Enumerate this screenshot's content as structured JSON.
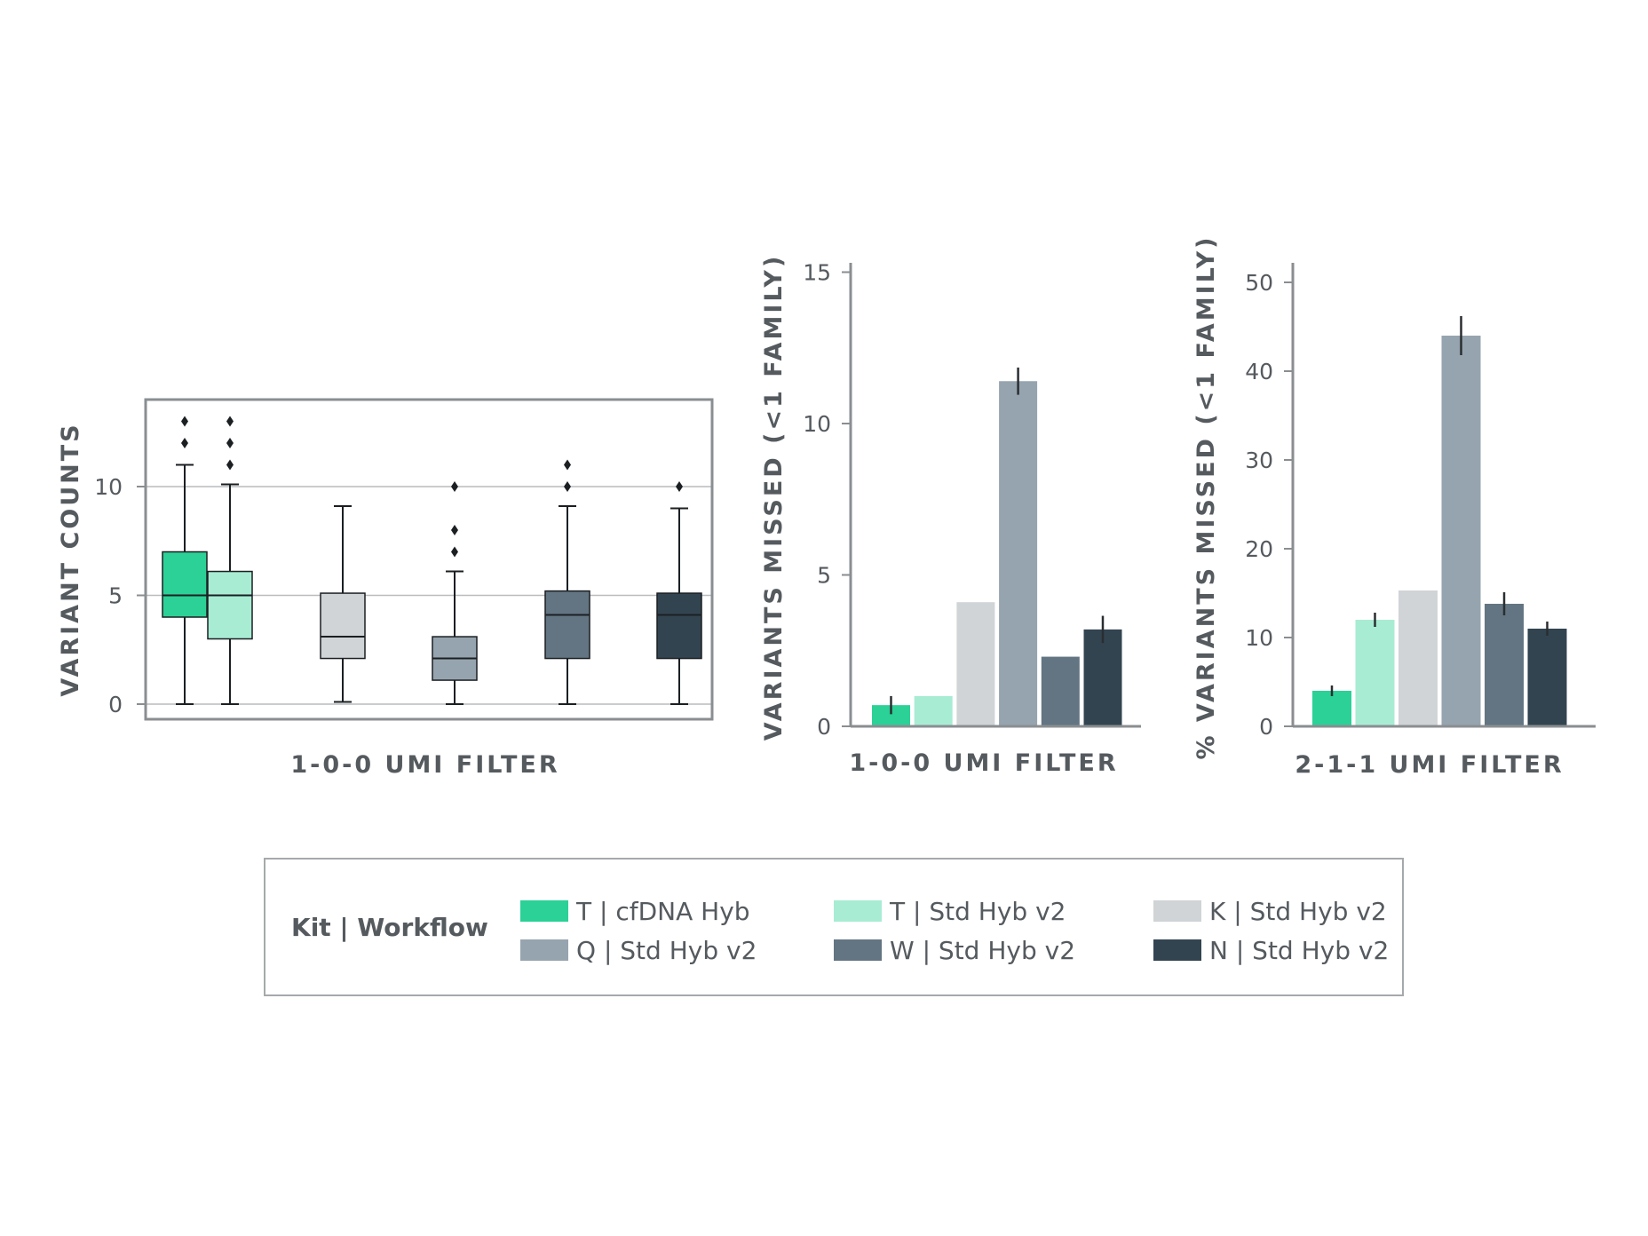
{
  "legend": {
    "title": "Kit | Workflow",
    "items": [
      {
        "label": "T | cfDNA Hyb",
        "color": "#2bd196"
      },
      {
        "label": "T | Std Hyb v2",
        "color": "#a8ecd4"
      },
      {
        "label": "K | Std Hyb v2",
        "color": "#d0d4d6"
      },
      {
        "label": "Q | Std Hyb v2",
        "color": "#96a4af"
      },
      {
        "label": "W | Std Hyb v2",
        "color": "#637582"
      },
      {
        "label": "N | Std Hyb v2",
        "color": "#334451"
      }
    ]
  },
  "chart_data": [
    {
      "type": "box",
      "ylabel": "VARIANT COUNTS",
      "xlabel": "1-0-0 UMI FILTER",
      "ylim": [
        0,
        10
      ],
      "yticks": [
        0,
        5,
        10
      ],
      "grid": true,
      "series": [
        {
          "name": "T | cfDNA Hyb",
          "min": 0,
          "q1": 4,
          "median": 5,
          "q3": 7,
          "max": 11,
          "outliers": [
            12,
            13
          ]
        },
        {
          "name": "T | Std Hyb v2",
          "min": 0,
          "q1": 3,
          "median": 5,
          "q3": 6.1,
          "max": 10.1,
          "outliers": [
            11,
            12,
            13
          ]
        },
        {
          "name": "K | Std Hyb v2",
          "min": 0.1,
          "q1": 2.1,
          "median": 3.1,
          "q3": 5.1,
          "max": 9.1,
          "outliers": []
        },
        {
          "name": "Q | Std Hyb v2",
          "min": 0,
          "q1": 1.1,
          "median": 2.1,
          "q3": 3.1,
          "max": 6.1,
          "outliers": [
            7,
            8,
            10
          ]
        },
        {
          "name": "W | Std Hyb v2",
          "min": 0,
          "q1": 2.1,
          "median": 4.1,
          "q3": 5.2,
          "max": 9.1,
          "outliers": [
            10,
            11
          ]
        },
        {
          "name": "N | Std Hyb v2",
          "min": 0,
          "q1": 2.1,
          "median": 4.1,
          "q3": 5.1,
          "max": 9,
          "outliers": [
            10
          ]
        }
      ]
    },
    {
      "type": "bar",
      "ylabel": "VARIANTS MISSED (<1 FAMILY)",
      "xlabel": "1-0-0 UMI FILTER",
      "ylim": [
        0,
        15
      ],
      "yticks": [
        0,
        5,
        10,
        15
      ],
      "categories": [
        "T | cfDNA Hyb",
        "T | Std Hyb v2",
        "K | Std Hyb v2",
        "Q | Std Hyb v2",
        "W | Std Hyb v2",
        "N | Std Hyb v2"
      ],
      "values": [
        0.7,
        1.0,
        4.1,
        11.4,
        2.3,
        3.2
      ],
      "errors": [
        0.3,
        0,
        0,
        0.45,
        0,
        0.45
      ]
    },
    {
      "type": "bar",
      "ylabel": "% VARIANTS MISSED (<1 FAMILY)",
      "xlabel": "2-1-1 UMI FILTER",
      "ylim": [
        0,
        50
      ],
      "yticks": [
        0,
        10,
        20,
        30,
        40,
        50
      ],
      "categories": [
        "T | cfDNA Hyb",
        "T | Std Hyb v2",
        "K | Std Hyb v2",
        "Q | Std Hyb v2",
        "W | Std Hyb v2",
        "N | Std Hyb v2"
      ],
      "values": [
        4.0,
        12.0,
        15.3,
        44.0,
        13.8,
        11.0
      ],
      "errors": [
        0.6,
        0.8,
        0,
        2.2,
        1.3,
        0.8
      ]
    }
  ]
}
